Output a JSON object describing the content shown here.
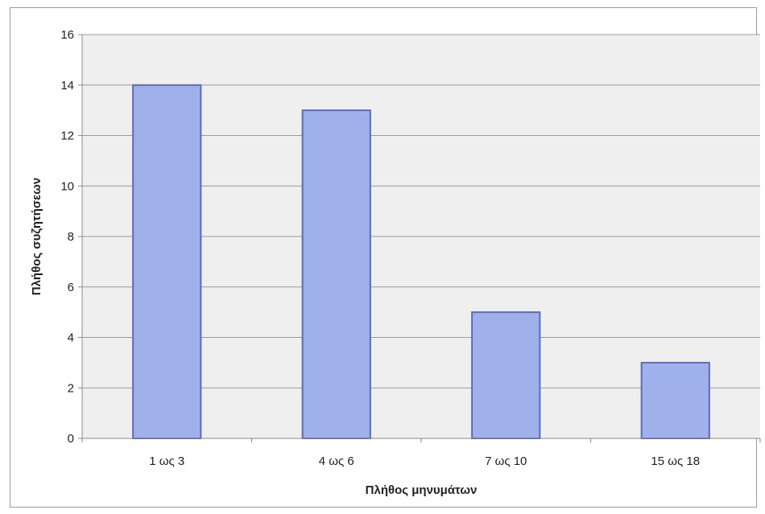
{
  "chart_data": {
    "type": "bar",
    "title": "",
    "xlabel": "Πλήθος μηνυμάτων",
    "ylabel": "Πλήθος συζητήσεων",
    "categories": [
      "1 ως 3",
      "4 ως 6",
      "7 ως 10",
      "15 ως 18"
    ],
    "values": [
      14,
      13,
      5,
      3
    ],
    "ylim": [
      0,
      16
    ],
    "yticks": [
      0,
      2,
      4,
      6,
      8,
      10,
      12,
      14,
      16
    ],
    "grid": true,
    "legend": "none",
    "colors": {
      "bar_fill": "#9fb0ea",
      "bar_stroke": "#5a6cbb",
      "plot_background": "#efefef",
      "gridline": "#9a9a9a"
    }
  }
}
